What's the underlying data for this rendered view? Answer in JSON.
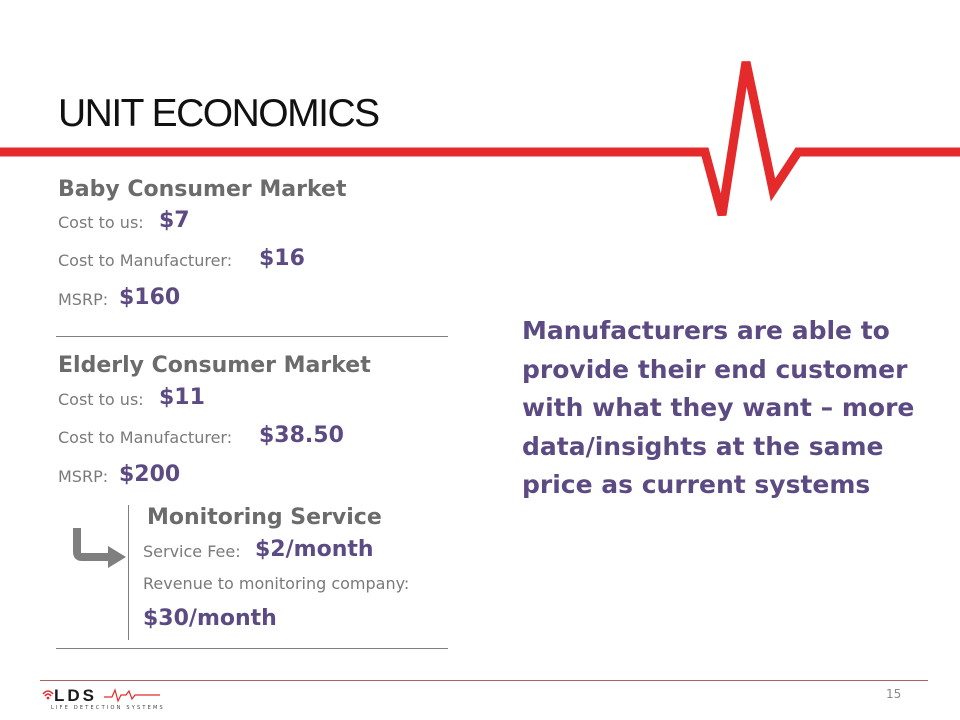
{
  "slide": {
    "title": "UNIT ECONOMICS",
    "page_number": "15",
    "accent_color": "#e42a2a",
    "value_color": "#5c4a82"
  },
  "baby_market": {
    "heading": "Baby Consumer Market",
    "rows": [
      {
        "label": "Cost to us:",
        "value": "$7"
      },
      {
        "label": "Cost to Manufacturer:",
        "value": "$16"
      },
      {
        "label": "MSRP:",
        "value": "$160"
      }
    ]
  },
  "elderly_market": {
    "heading": "Elderly Consumer Market",
    "rows": [
      {
        "label": "Cost to us:",
        "value": "$11"
      },
      {
        "label": "Cost to Manufacturer:",
        "value": "$38.50"
      },
      {
        "label": "MSRP:",
        "value": "$200"
      }
    ]
  },
  "monitoring_service": {
    "heading": "Monitoring Service",
    "fee_label": "Service Fee:",
    "fee_value": "$2/month",
    "revenue_label": "Revenue to monitoring company:",
    "revenue_value": "$30/month",
    "arrow_icon": "turn-right-arrow-icon"
  },
  "callout": {
    "text": "Manufacturers are able to provide their end customer with what they want – more data/insights at the same price as current systems"
  },
  "logo": {
    "wordmark": "LDS",
    "tagline": "LIFE DETECTION SYSTEMS"
  }
}
